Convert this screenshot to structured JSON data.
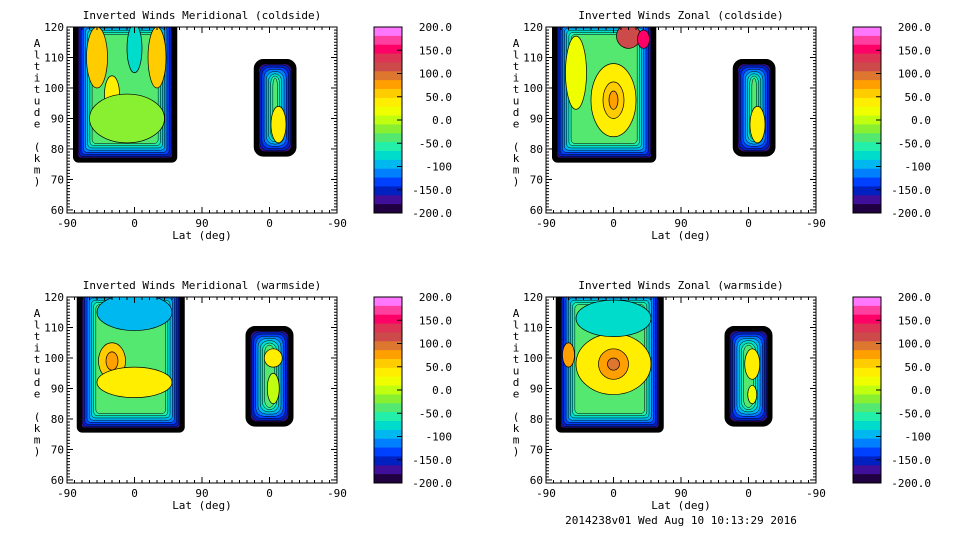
{
  "chart_data": [
    {
      "type": "heatmap",
      "title": "Inverted Winds Meridional (coldside)",
      "xlabel": "Lat (deg)",
      "ylabel": "Altitude (km)",
      "xticks": [
        "-90",
        "0",
        "90",
        "0",
        "-90"
      ],
      "yticks": [
        "60",
        "70",
        "80",
        "90",
        "100",
        "110",
        "120"
      ],
      "ylim": [
        59,
        120
      ],
      "colorbar": {
        "range": [
          -200,
          200
        ],
        "ticks": [
          "200.0",
          "150.0",
          "100.0",
          "50.0",
          "0.0",
          "-50.0",
          "-100",
          "-150.0",
          "-200.0"
        ]
      }
    },
    {
      "type": "heatmap",
      "title": "Inverted Winds Zonal (coldside)",
      "xlabel": "Lat (deg)",
      "ylabel": "Altitude (km)",
      "xticks": [
        "-90",
        "0",
        "90",
        "0",
        "-90"
      ],
      "yticks": [
        "60",
        "70",
        "80",
        "90",
        "100",
        "110",
        "120"
      ],
      "ylim": [
        59,
        120
      ],
      "colorbar": {
        "range": [
          -200,
          200
        ],
        "ticks": [
          "200.0",
          "150.0",
          "100.0",
          "50.0",
          "0.0",
          "-50.0",
          "-100",
          "-150.0",
          "-200.0"
        ]
      }
    },
    {
      "type": "heatmap",
      "title": "Inverted Winds Meridional (warmside)",
      "xlabel": "Lat (deg)",
      "ylabel": "Altitude (km)",
      "xticks": [
        "-90",
        "0",
        "90",
        "0",
        "-90"
      ],
      "yticks": [
        "60",
        "70",
        "80",
        "90",
        "100",
        "110",
        "120"
      ],
      "ylim": [
        59,
        120
      ],
      "colorbar": {
        "range": [
          -200,
          200
        ],
        "ticks": [
          "200.0",
          "150.0",
          "100.0",
          "50.0",
          "0.0",
          "-50.0",
          "-100",
          "-150.0",
          "-200.0"
        ]
      }
    },
    {
      "type": "heatmap",
      "title": "Inverted Winds Zonal (warmside)",
      "xlabel": "Lat (deg)",
      "ylabel": "Altitude (km)",
      "xticks": [
        "-90",
        "0",
        "90",
        "0",
        "-90"
      ],
      "yticks": [
        "60",
        "70",
        "80",
        "90",
        "100",
        "110",
        "120"
      ],
      "ylim": [
        59,
        120
      ],
      "colorbar": {
        "range": [
          -200,
          200
        ],
        "ticks": [
          "200.0",
          "150.0",
          "100.0",
          "50.0",
          "0.0",
          "-50.0",
          "-100",
          "-150.0",
          "-200.0"
        ]
      }
    }
  ],
  "colorscale": [
    "#ff77ff",
    "#ff3fa0",
    "#ff0066",
    "#dd3355",
    "#cc4a4a",
    "#dd7730",
    "#ffa000",
    "#ffcc00",
    "#ffee00",
    "#f0ff00",
    "#c0ff10",
    "#88f030",
    "#55e870",
    "#22f0aa",
    "#00dccc",
    "#00b8f0",
    "#0080ff",
    "#0040ff",
    "#0020c0",
    "#40109a",
    "#200040"
  ],
  "footer": "2014238v01 Wed Aug 10 10:13:29 2016"
}
